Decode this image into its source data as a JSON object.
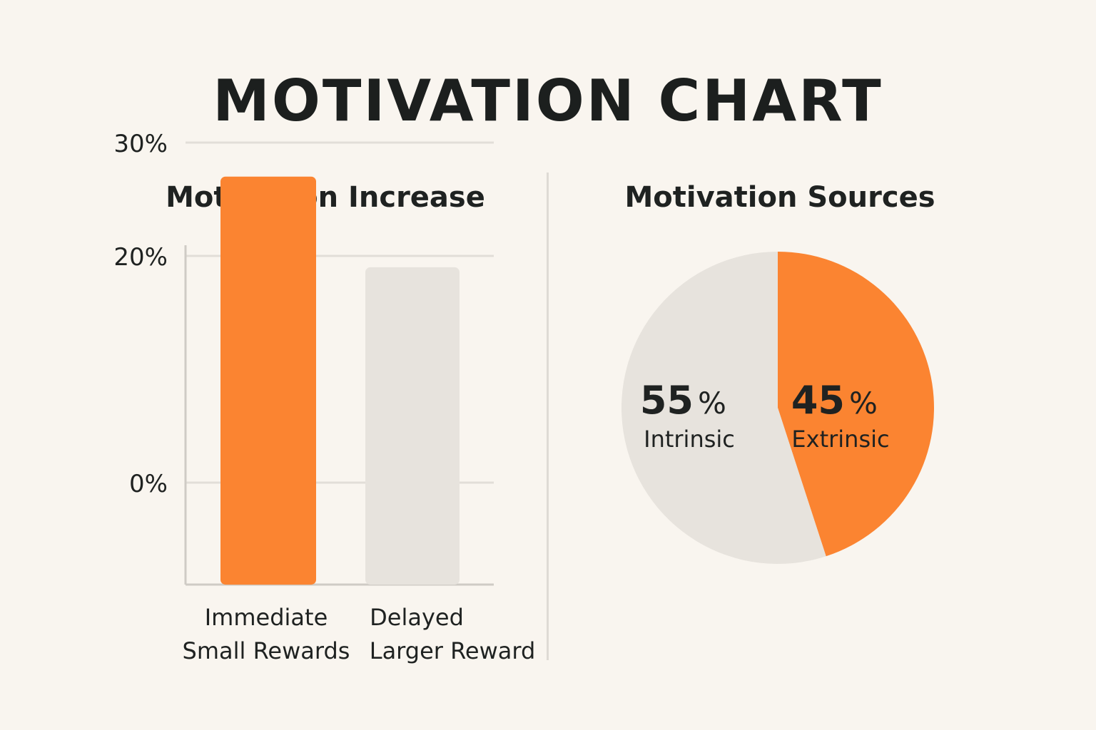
{
  "title": "MOTIVATION CHART",
  "colors": {
    "background": "#f9f5ef",
    "accent": "#fb8431",
    "neutral": "#e7e3dd",
    "grid": "#e2ded8",
    "axis": "#cfcbc5",
    "text": "#1f2221",
    "divider": "#dedad4"
  },
  "chart_data": [
    {
      "type": "bar",
      "title": "Motivation Increase",
      "categories": [
        [
          "Immediate",
          "Small Rewards"
        ],
        [
          "Delayed",
          "Larger Reward"
        ]
      ],
      "values": [
        27,
        19
      ],
      "colors": [
        "#fb8431",
        "#e7e3dd"
      ],
      "ylim": [
        -9,
        30
      ],
      "yticks": [
        {
          "value": 30,
          "label": "30%"
        },
        {
          "value": 20,
          "label": "20%"
        },
        {
          "value": 0,
          "label": "0%"
        }
      ],
      "grid": true,
      "xlabel": "",
      "ylabel": ""
    },
    {
      "type": "pie",
      "title": "Motivation Sources",
      "slices": [
        {
          "label": "Extrinsic",
          "value": 45,
          "display": "45",
          "unit": "%",
          "color": "#fb8431"
        },
        {
          "label": "Intrinsic",
          "value": 55,
          "display": "55",
          "unit": "%",
          "color": "#e7e3dd"
        }
      ]
    }
  ]
}
